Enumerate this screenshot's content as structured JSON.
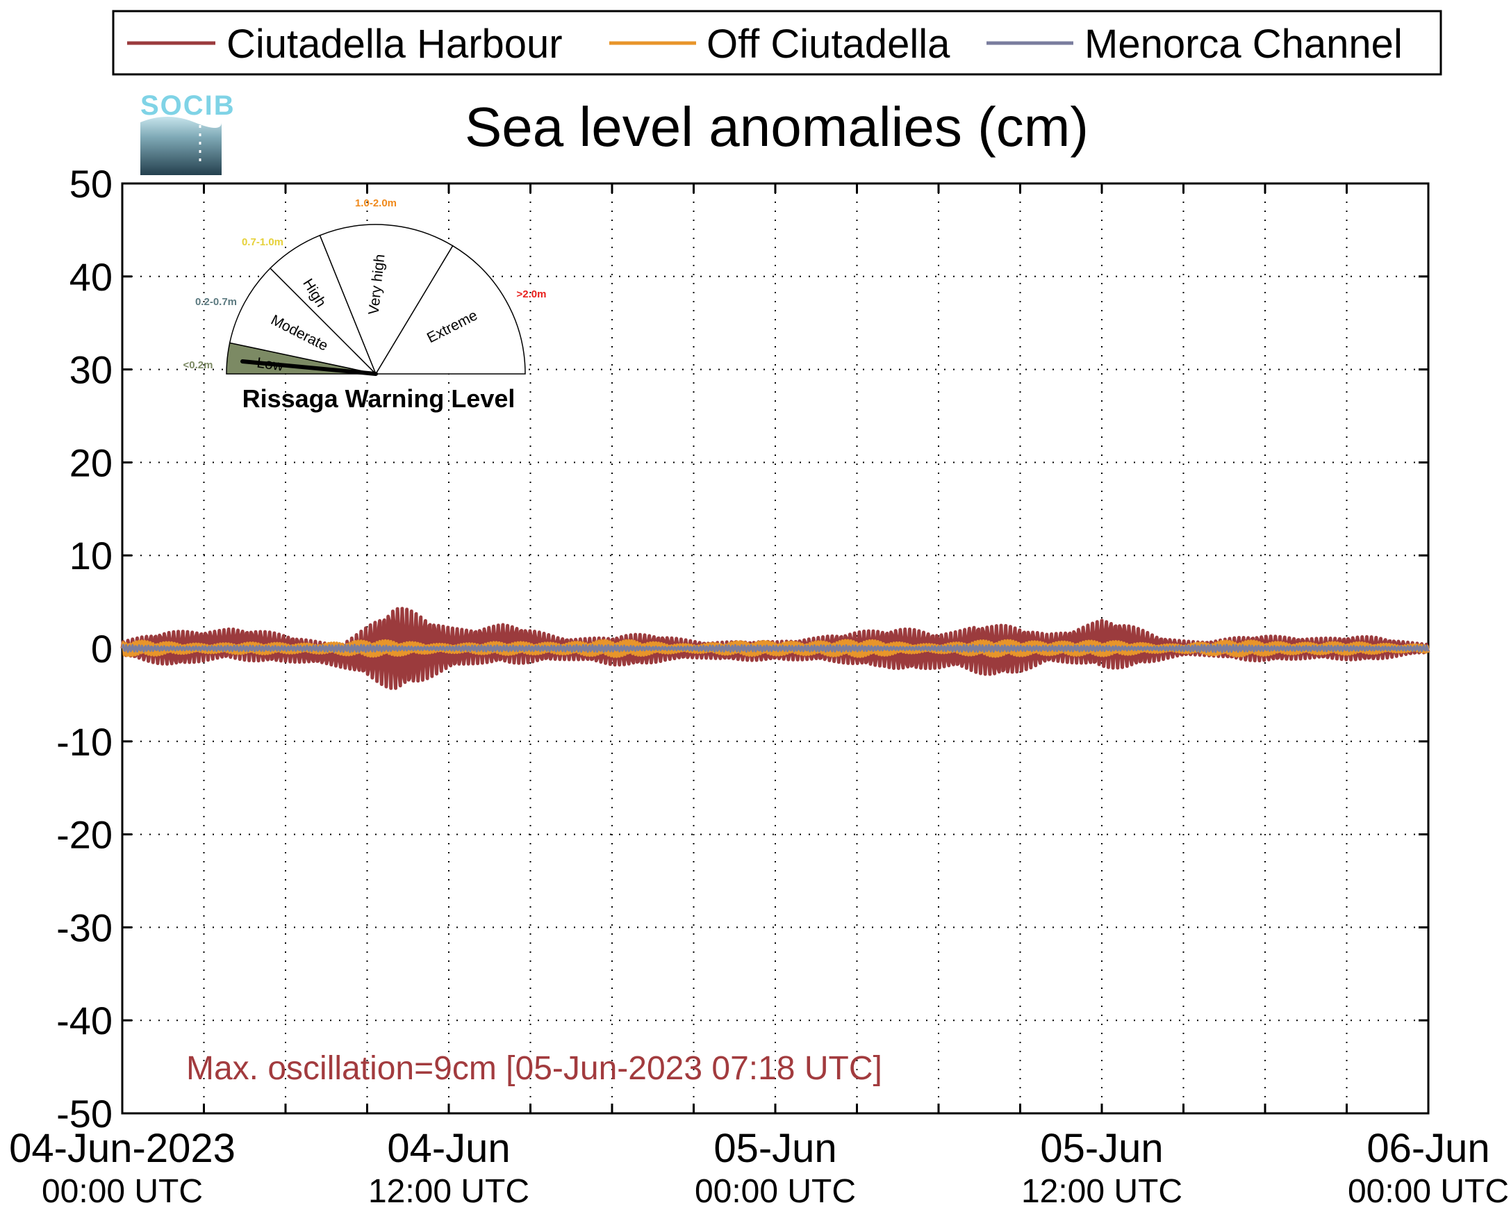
{
  "chart_data": {
    "type": "line",
    "title": "Sea level anomalies (cm)",
    "xlabel": "",
    "ylabel": "",
    "ylim": [
      -50,
      50
    ],
    "yticks": [
      50,
      40,
      30,
      20,
      10,
      0,
      -10,
      -20,
      -30,
      -40,
      -50
    ],
    "ytick_labels": [
      "50",
      "40",
      "30",
      "20",
      "10",
      "0",
      "-10",
      "-20",
      "-30",
      "-40",
      "-50"
    ],
    "x_range": [
      "2023-06-04 00:00",
      "2023-06-06 00:00"
    ],
    "x_ticks": [
      {
        "date": "04-Jun-2023",
        "time": "00:00 UTC"
      },
      {
        "date": "04-Jun",
        "time": "12:00 UTC"
      },
      {
        "date": "05-Jun",
        "time": "00:00 UTC"
      },
      {
        "date": "05-Jun",
        "time": "12:00 UTC"
      },
      {
        "date": "06-Jun",
        "time": "00:00 UTC"
      }
    ],
    "grid": true,
    "legend_position": "top",
    "series": [
      {
        "name": "Ciutadella Harbour",
        "color": "#9b3b3d",
        "envelope": [
          {
            "t": "2023-06-04 00:00",
            "min": -1,
            "max": 1
          },
          {
            "t": "2023-06-04 02:00",
            "min": -2,
            "max": 2
          },
          {
            "t": "2023-06-04 04:00",
            "min": -2,
            "max": 3
          },
          {
            "t": "2023-06-04 06:00",
            "min": -2,
            "max": 2
          },
          {
            "t": "2023-06-04 08:00",
            "min": -3,
            "max": 1.5
          },
          {
            "t": "2023-06-04 10:00",
            "min": -4.5,
            "max": 4.5
          },
          {
            "t": "2023-06-04 12:00",
            "min": -3.5,
            "max": 3.5
          },
          {
            "t": "2023-06-04 14:00",
            "min": -2.5,
            "max": 3.5
          },
          {
            "t": "2023-06-04 16:00",
            "min": -2,
            "max": 2
          },
          {
            "t": "2023-06-04 18:00",
            "min": -2,
            "max": 1.5
          },
          {
            "t": "2023-06-04 20:00",
            "min": -1.5,
            "max": 1.5
          },
          {
            "t": "2023-06-04 22:00",
            "min": -2,
            "max": 1.5
          },
          {
            "t": "2023-06-05 00:00",
            "min": -1.5,
            "max": 1
          },
          {
            "t": "2023-06-05 02:00",
            "min": -2,
            "max": 2
          },
          {
            "t": "2023-06-05 04:00",
            "min": -2,
            "max": 2
          },
          {
            "t": "2023-06-05 06:00",
            "min": -4,
            "max": 3.5
          },
          {
            "t": "2023-06-05 07:18",
            "min": -4.5,
            "max": 4.5
          },
          {
            "t": "2023-06-05 08:00",
            "min": -4,
            "max": 3.5
          },
          {
            "t": "2023-06-05 10:00",
            "min": -2,
            "max": 2
          },
          {
            "t": "2023-06-05 12:00",
            "min": -2.5,
            "max": 3.5
          },
          {
            "t": "2023-06-05 14:00",
            "min": -2,
            "max": 2
          },
          {
            "t": "2023-06-05 16:00",
            "min": -1.5,
            "max": 1.5
          },
          {
            "t": "2023-06-05 18:00",
            "min": -1.5,
            "max": 1.5
          },
          {
            "t": "2023-06-05 20:00",
            "min": -1.5,
            "max": 1.5
          },
          {
            "t": "2023-06-05 22:00",
            "min": -1.5,
            "max": 1.5
          },
          {
            "t": "2023-06-06 00:00",
            "min": -1,
            "max": 1
          }
        ]
      },
      {
        "name": "Off Ciutadella",
        "color": "#e8952a",
        "envelope": [
          {
            "t": "2023-06-04 00:00",
            "min": -0.8,
            "max": 0.8
          },
          {
            "t": "2023-06-05 07:18",
            "min": -1,
            "max": 1
          },
          {
            "t": "2023-06-06 00:00",
            "min": -0.8,
            "max": 0.8
          }
        ]
      },
      {
        "name": "Menorca Channel",
        "color": "#7a7d9e",
        "envelope": [
          {
            "t": "2023-06-04 00:00",
            "min": -0.4,
            "max": 0.4
          },
          {
            "t": "2023-06-06 00:00",
            "min": -0.4,
            "max": 0.4
          }
        ]
      }
    ],
    "annotation": "Max. oscillation=9cm [05-Jun-2023 07:18 UTC]"
  },
  "logo": {
    "text": "SOCIB"
  },
  "gauge": {
    "title": "Rissaga Warning Level",
    "needle_value": "Low",
    "sectors": [
      {
        "label": "Low",
        "range": "<0.2m",
        "range_color": "#7c8a64",
        "fill": "#7c8a64"
      },
      {
        "label": "Moderate",
        "range": "0.2-0.7m",
        "range_color": "#5c7a80",
        "fill": "#ffffff"
      },
      {
        "label": "High",
        "range": "0.7-1.0m",
        "range_color": "#e6d13a",
        "fill": "#ffffff"
      },
      {
        "label": "Very high",
        "range": "1.0-2.0m",
        "range_color": "#f08a1c",
        "fill": "#ffffff"
      },
      {
        "label": "Extreme",
        "range": ">2.0m",
        "range_color": "#e8201c",
        "fill": "#ffffff"
      }
    ]
  }
}
